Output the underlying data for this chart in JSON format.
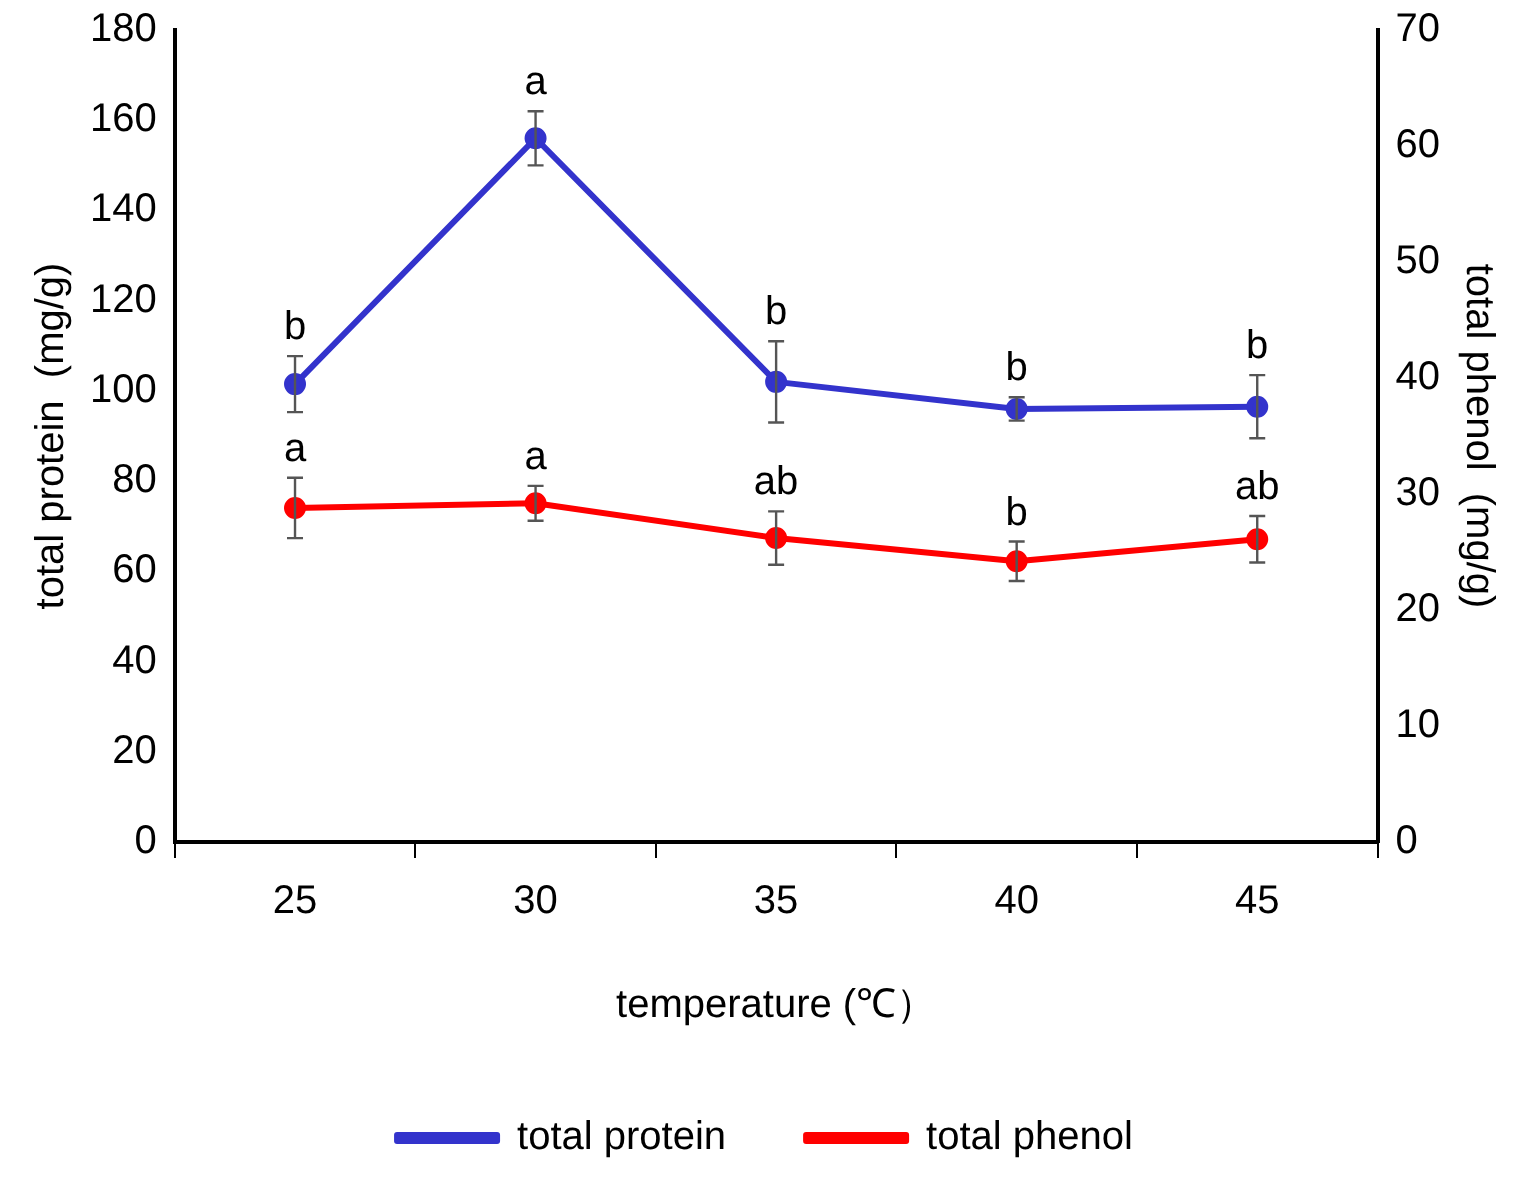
{
  "chart_data": {
    "type": "line",
    "xlabel": "temperature (℃）",
    "ylabel": "total protein  (mg/g)",
    "y2label": "total phenol  (mg/g)",
    "categories": [
      "25",
      "30",
      "35",
      "40",
      "45"
    ],
    "series": [
      {
        "name": "total protein",
        "color": "#3333cc",
        "values": [
          101.5,
          156,
          102,
          96,
          96.5
        ],
        "errors": [
          6.2,
          6,
          9,
          2.6,
          7
        ]
      },
      {
        "name": "total phenol",
        "color": "#ff0000",
        "axis": "y2",
        "values": [
          28.8,
          29.2,
          26.2,
          24.2,
          26.1
        ],
        "errors": [
          2.6,
          1.5,
          2.3,
          1.7,
          2
        ]
      }
    ],
    "ylim": [
      0,
      180
    ],
    "yticks": [
      0,
      20,
      40,
      60,
      80,
      100,
      120,
      140,
      160,
      180
    ],
    "y2lim": [
      0,
      70
    ],
    "y2ticks": [
      0,
      10,
      20,
      30,
      40,
      50,
      60,
      70
    ],
    "annotations": [
      "b",
      "a",
      "b",
      "b",
      "b",
      "a",
      "a",
      "ab",
      "b",
      "ab"
    ],
    "grid": false,
    "legend": "bottom",
    "marker": "circle",
    "line_style": "solid"
  }
}
